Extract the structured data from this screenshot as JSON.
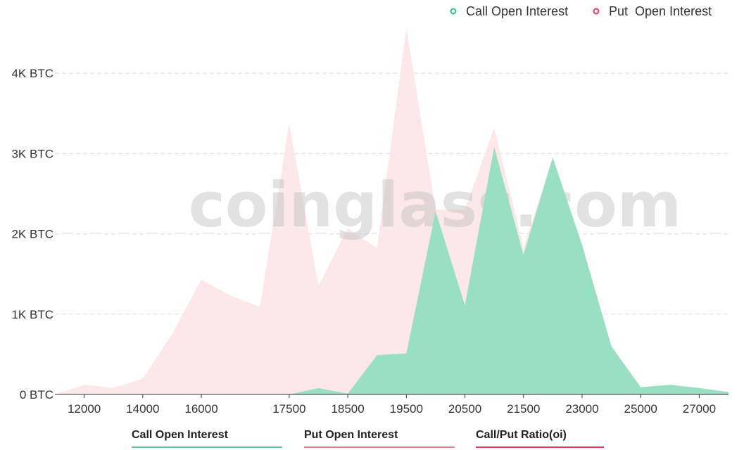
{
  "legend": {
    "call_label": "Call Open Interest",
    "put_label": "Put  Open Interest",
    "call_color": "#2fc08a",
    "put_color": "#e8365a"
  },
  "watermark": "coinglass.com",
  "tabs": [
    {
      "label": "Call Open Interest",
      "underline_color": "#5cc9a0"
    },
    {
      "label": "Put Open Interest",
      "underline_color": "#e87a90"
    },
    {
      "label": "Call/Put Ratio(oi)",
      "underline_color": "#e8365a"
    }
  ],
  "chart_data": {
    "type": "area",
    "x": [
      11000,
      12000,
      13000,
      14000,
      15000,
      16000,
      16500,
      17000,
      17500,
      18000,
      18500,
      19000,
      19500,
      20000,
      20500,
      21000,
      21500,
      22000,
      23000,
      24000,
      25000,
      26000,
      27000,
      28000
    ],
    "x_tick_labels": [
      "12000",
      "14000",
      "16000",
      "17500",
      "18500",
      "19500",
      "20500",
      "21500",
      "23000",
      "25000",
      "27000"
    ],
    "x_tick_indices": [
      1,
      3,
      5,
      8,
      10,
      12,
      14,
      16,
      18,
      20,
      22
    ],
    "y_ticks": [
      0,
      1000,
      2000,
      3000,
      4000
    ],
    "y_tick_labels": [
      "0 BTC",
      "1K BTC",
      "2K BTC",
      "3K BTC",
      "4K BTC"
    ],
    "ylim": [
      0,
      4500
    ],
    "series": [
      {
        "name": "Call Open Interest",
        "color": "#98dfc3",
        "values": [
          0,
          0,
          0,
          0,
          0,
          0,
          0,
          0,
          0,
          80,
          10,
          490,
          510,
          2280,
          1110,
          3080,
          1740,
          2950,
          1860,
          600,
          90,
          120,
          80,
          30
        ]
      },
      {
        "name": "Put  Open Interest",
        "color": "#fce7ea",
        "values": [
          0,
          120,
          80,
          200,
          750,
          1430,
          1230,
          1090,
          3370,
          1350,
          2070,
          1820,
          4560,
          2300,
          2300,
          3320,
          1830,
          2950,
          1860,
          600,
          90,
          120,
          80,
          30
        ]
      }
    ]
  }
}
